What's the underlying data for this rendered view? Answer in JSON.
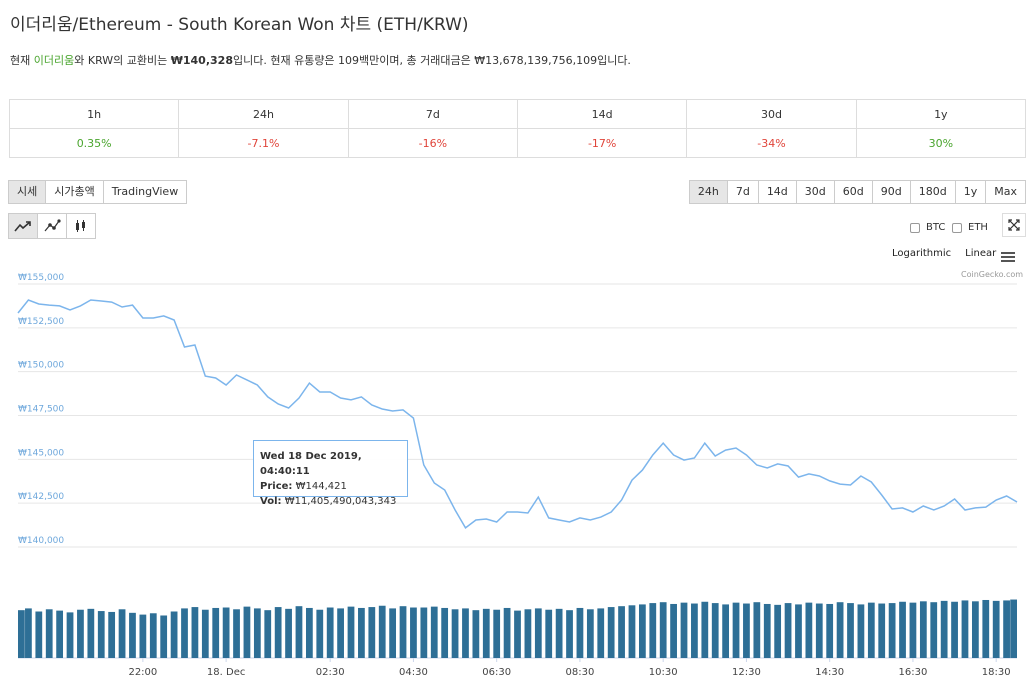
{
  "header": {
    "title": "이더리움/Ethereum - South Korean Won 차트 (ETH/KRW)",
    "description": [
      "현재 ",
      "이더리움",
      "와 KRW의 교환비는 ",
      "₩140,328",
      "입니다. 현재 유통량은 109백만이며, 총 거래대금은 ₩13,678,139,756,109입니다."
    ]
  },
  "stats": {
    "headers": [
      "1h",
      "24h",
      "7d",
      "14d",
      "30d",
      "1y"
    ],
    "values": [
      "0.35%",
      "-7.1%",
      "-16%",
      "-17%",
      "-34%",
      "30%"
    ]
  },
  "tabs": [
    "시세",
    "시가총액",
    "TradingView"
  ],
  "ranges": [
    "24h",
    "7d",
    "14d",
    "30d",
    "60d",
    "90d",
    "180d",
    "1y",
    "Max"
  ],
  "compare": [
    "BTC",
    "ETH"
  ],
  "scales": [
    "Logarithmic",
    "Linear"
  ],
  "credit": "CoinGecko.com",
  "tooltip": {
    "date": "Wed 18 Dec 2019, 04:40:11",
    "price_label": "Price:",
    "price": "₩144,421",
    "vol_label": "Vol:",
    "vol": "₩11,405,490,043,343"
  },
  "chart_data": {
    "type": "line",
    "x": [
      "2019-12-17T19:00",
      "2019-12-17T19:15",
      "2019-12-17T19:30",
      "2019-12-17T19:45",
      "2019-12-17T20:00",
      "2019-12-17T20:15",
      "2019-12-17T20:30",
      "2019-12-17T20:45",
      "2019-12-17T21:00",
      "2019-12-17T21:15",
      "2019-12-17T21:30",
      "2019-12-17T21:45",
      "2019-12-17T22:00",
      "2019-12-17T22:15",
      "2019-12-17T22:30",
      "2019-12-17T22:45",
      "2019-12-17T23:00",
      "2019-12-17T23:15",
      "2019-12-17T23:30",
      "2019-12-17T23:45",
      "2019-12-18T00:00",
      "2019-12-18T00:15",
      "2019-12-18T00:30",
      "2019-12-18T00:45",
      "2019-12-18T01:00",
      "2019-12-18T01:15",
      "2019-12-18T01:30",
      "2019-12-18T01:45",
      "2019-12-18T02:00",
      "2019-12-18T02:15",
      "2019-12-18T02:30",
      "2019-12-18T02:45",
      "2019-12-18T03:00",
      "2019-12-18T03:15",
      "2019-12-18T03:30",
      "2019-12-18T03:45",
      "2019-12-18T04:00",
      "2019-12-18T04:15",
      "2019-12-18T04:30",
      "2019-12-18T04:45",
      "2019-12-18T05:00",
      "2019-12-18T05:15",
      "2019-12-18T05:30",
      "2019-12-18T05:45",
      "2019-12-18T06:00",
      "2019-12-18T06:15",
      "2019-12-18T06:30",
      "2019-12-18T06:45",
      "2019-12-18T07:00",
      "2019-12-18T07:15",
      "2019-12-18T07:30",
      "2019-12-18T07:45",
      "2019-12-18T08:00",
      "2019-12-18T08:15",
      "2019-12-18T08:30",
      "2019-12-18T08:45",
      "2019-12-18T09:00",
      "2019-12-18T09:15",
      "2019-12-18T09:30",
      "2019-12-18T09:45",
      "2019-12-18T10:00",
      "2019-12-18T10:15",
      "2019-12-18T10:30",
      "2019-12-18T10:45",
      "2019-12-18T11:00",
      "2019-12-18T11:15",
      "2019-12-18T11:30",
      "2019-12-18T11:45",
      "2019-12-18T12:00",
      "2019-12-18T12:15",
      "2019-12-18T12:30",
      "2019-12-18T12:45",
      "2019-12-18T13:00",
      "2019-12-18T13:15",
      "2019-12-18T13:30",
      "2019-12-18T13:45",
      "2019-12-18T14:00",
      "2019-12-18T14:15",
      "2019-12-18T14:30",
      "2019-12-18T14:45",
      "2019-12-18T15:00",
      "2019-12-18T15:15",
      "2019-12-18T15:30",
      "2019-12-18T15:45",
      "2019-12-18T16:00",
      "2019-12-18T16:15",
      "2019-12-18T16:30",
      "2019-12-18T16:45",
      "2019-12-18T17:00",
      "2019-12-18T17:15",
      "2019-12-18T17:30",
      "2019-12-18T17:45",
      "2019-12-18T18:00",
      "2019-12-18T18:15",
      "2019-12-18T18:30",
      "2019-12-18T18:45",
      "2019-12-18T19:00"
    ],
    "xlim": [
      "2019-12-17T19:00",
      "2019-12-18T19:00"
    ],
    "xticks": [
      {
        "value": "2019-12-17T22:00",
        "label": "22:00"
      },
      {
        "value": "2019-12-18T00:00",
        "label": "18. Dec"
      },
      {
        "value": "2019-12-18T02:30",
        "label": "02:30"
      },
      {
        "value": "2019-12-18T04:30",
        "label": "04:30"
      },
      {
        "value": "2019-12-18T06:30",
        "label": "06:30"
      },
      {
        "value": "2019-12-18T08:30",
        "label": "08:30"
      },
      {
        "value": "2019-12-18T10:30",
        "label": "10:30"
      },
      {
        "value": "2019-12-18T12:30",
        "label": "12:30"
      },
      {
        "value": "2019-12-18T14:30",
        "label": "14:30"
      },
      {
        "value": "2019-12-18T16:30",
        "label": "16:30"
      },
      {
        "value": "2019-12-18T18:30",
        "label": "18:30"
      }
    ],
    "ylim": [
      140000,
      155000
    ],
    "yticks": [
      {
        "value": 155000,
        "label": "₩155,000"
      },
      {
        "value": 152500,
        "label": "₩152,500"
      },
      {
        "value": 150000,
        "label": "₩150,000"
      },
      {
        "value": 147500,
        "label": "₩147,500"
      },
      {
        "value": 145000,
        "label": "₩145,000"
      },
      {
        "value": 142500,
        "label": "₩142,500"
      },
      {
        "value": 140000,
        "label": "₩140,000"
      }
    ],
    "y2lim": [
      0,
      14000000000000.0
    ],
    "grid": true,
    "series": [
      {
        "color": "#7cb5ec",
        "values": [
          153120,
          153860,
          153630,
          153570,
          153520,
          153290,
          153520,
          153860,
          153800,
          153740,
          153460,
          153570,
          152830,
          152830,
          152950,
          152720,
          151180,
          151290,
          149520,
          149410,
          149010,
          149580,
          149300,
          149010,
          148330,
          147930,
          147700,
          148270,
          149120,
          148610,
          148610,
          148270,
          148160,
          148330,
          147870,
          147640,
          147530,
          147590,
          147130,
          144450,
          143420,
          143020,
          141880,
          140860,
          141310,
          141370,
          141200,
          141770,
          141770,
          141710,
          142620,
          141430,
          141310,
          141200,
          141430,
          141310,
          141480,
          141770,
          142450,
          143590,
          144160,
          145020,
          145700,
          145020,
          144730,
          144850,
          145700,
          144960,
          145300,
          145420,
          145020,
          144450,
          144280,
          144510,
          144390,
          143760,
          143940,
          143820,
          143540,
          143360,
          143310,
          143820,
          143480,
          142740,
          141940,
          142000,
          141770,
          142110,
          141880,
          142110,
          142510,
          141880,
          142000,
          142050,
          142450,
          142680,
          142340
        ]
      },
      {
        "color": "#2e6f96",
        "axis": "y2",
        "values": [
          10800000000000.0,
          11200000000000.0,
          10500000000000.0,
          11000000000000.0,
          10700000000000.0,
          10300000000000.0,
          10900000000000.0,
          11100000000000.0,
          10600000000000.0,
          10400000000000.0,
          11000000000000.0,
          10200000000000.0,
          9800000000000.0,
          10100000000000.0,
          9600000000000.0,
          10500000000000.0,
          11200000000000.0,
          11500000000000.0,
          10900000000000.0,
          11300000000000.0,
          11400000000000.0,
          11000000000000.0,
          11600000000000.0,
          11200000000000.0,
          10800000000000.0,
          11500000000000.0,
          11100000000000.0,
          11700000000000.0,
          11300000000000.0,
          10900000000000.0,
          11400000000000.0,
          11200000000000.0,
          11600000000000.0,
          11300000000000.0,
          11500000000000.0,
          11800000000000.0,
          11200000000000.0,
          11700000000000.0,
          11400000000000.0,
          11400000000000.0,
          11600000000000.0,
          11300000000000.0,
          11000000000000.0,
          11200000000000.0,
          10800000000000.0,
          11100000000000.0,
          10900000000000.0,
          11300000000000.0,
          10700000000000.0,
          11000000000000.0,
          11200000000000.0,
          10900000000000.0,
          11100000000000.0,
          10800000000000.0,
          11300000000000.0,
          11000000000000.0,
          11200000000000.0,
          11500000000000.0,
          11700000000000.0,
          11900000000000.0,
          12100000000000.0,
          12400000000000.0,
          12600000000000.0,
          12200000000000.0,
          12500000000000.0,
          12300000000000.0,
          12700000000000.0,
          12400000000000.0,
          12100000000000.0,
          12500000000000.0,
          12300000000000.0,
          12600000000000.0,
          12200000000000.0,
          12000000000000.0,
          12400000000000.0,
          12100000000000.0,
          12500000000000.0,
          12300000000000.0,
          12200000000000.0,
          12600000000000.0,
          12400000000000.0,
          12100000000000.0,
          12500000000000.0,
          12300000000000.0,
          12400000000000.0,
          12700000000000.0,
          12500000000000.0,
          12800000000000.0,
          12600000000000.0,
          12900000000000.0,
          12700000000000.0,
          13000000000000.0,
          12800000000000.0,
          13100000000000.0,
          12900000000000.0,
          13000000000000.0,
          13200000000000.0
        ]
      }
    ]
  }
}
